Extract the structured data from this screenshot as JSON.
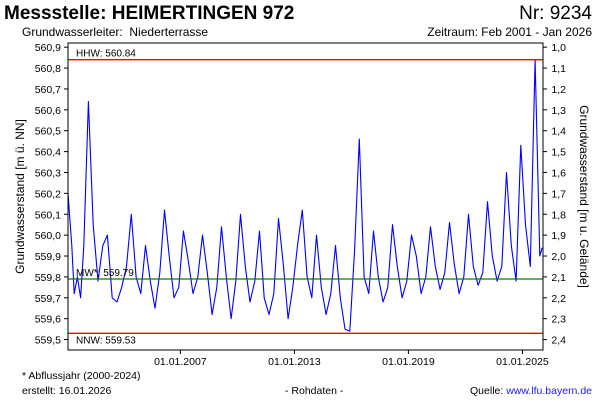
{
  "header": {
    "title": "Messstelle: HEIMERTINGEN 972",
    "number": "Nr: 9234",
    "aquifer_label": "Grundwasserleiter:",
    "aquifer_value": "Niederterrasse",
    "period": "Zeitraum: Feb 2001 - Jan 2026"
  },
  "footer": {
    "footnote": "* Abflussjahr (2000-2024)",
    "created": "erstellt:  16.01.2026",
    "rawdata": "- Rohdaten -",
    "source_label": "Quelle: ",
    "source_url": "www.lfu.bayern.de"
  },
  "colors": {
    "series": "#0000ff",
    "hhw": "#ff0000",
    "nnw": "#ff0000",
    "mw": "#008000",
    "axis": "#000000"
  },
  "chart_data": {
    "type": "line",
    "ylabel": "Grundwasserstand [m ü. NN]",
    "y2label": "Grundwasserstand [m u. Gelände]",
    "ylim": [
      559.45,
      560.92
    ],
    "yticks": [
      "560,9",
      "560,8",
      "560,7",
      "560,6",
      "560,5",
      "560,4",
      "560,3",
      "560,2",
      "560,1",
      "560,0",
      "559,9",
      "559,8",
      "559,7",
      "559,6",
      "559,5"
    ],
    "yticks_right": [
      "1,0",
      "1,1",
      "1,2",
      "1,3",
      "1,4",
      "1,5",
      "1,6",
      "1,7",
      "1,8",
      "1,9",
      "2,0",
      "2,1",
      "2,2",
      "2,3",
      "2,4"
    ],
    "xlim": [
      "2001-02-01",
      "2026-01-31"
    ],
    "xticks": [
      {
        "date": "2007-01-01",
        "label": "01.01.2007"
      },
      {
        "date": "2013-01-01",
        "label": "01.01.2013"
      },
      {
        "date": "2019-01-01",
        "label": "01.01.2019"
      },
      {
        "date": "2025-01-01",
        "label": "01.01.2025"
      }
    ],
    "reference_lines": [
      {
        "name": "HHW",
        "label": "HHW: 560.84",
        "value": 560.84
      },
      {
        "name": "MW",
        "label": "MW*: 559.79",
        "value": 559.79
      },
      {
        "name": "NNW",
        "label": "NNW: 559.53",
        "value": 559.53
      }
    ],
    "grid": false,
    "series": [
      {
        "x": [
          "2001-02-01",
          "2001-04-15",
          "2001-06-01",
          "2001-08-01",
          "2001-10-01",
          "2001-12-01",
          "2002-03-01",
          "2002-06-01",
          "2002-09-01",
          "2002-12-01",
          "2003-03-01",
          "2003-06-01",
          "2003-09-01",
          "2003-12-01",
          "2004-03-01",
          "2004-06-01",
          "2004-09-01",
          "2004-12-01",
          "2005-03-01",
          "2005-06-01",
          "2005-09-01",
          "2005-12-01",
          "2006-03-01",
          "2006-06-01",
          "2006-09-01",
          "2006-12-01",
          "2007-03-01",
          "2007-06-01",
          "2007-09-01",
          "2007-12-01",
          "2008-03-01",
          "2008-06-01",
          "2008-09-01",
          "2008-12-01",
          "2009-03-01",
          "2009-06-01",
          "2009-09-01",
          "2009-12-01",
          "2010-03-01",
          "2010-06-01",
          "2010-09-01",
          "2010-12-01",
          "2011-03-01",
          "2011-06-01",
          "2011-09-01",
          "2011-12-01",
          "2012-03-01",
          "2012-06-01",
          "2012-09-01",
          "2012-12-01",
          "2013-03-01",
          "2013-06-01",
          "2013-09-01",
          "2013-12-01",
          "2014-03-01",
          "2014-06-01",
          "2014-09-01",
          "2014-12-01",
          "2015-03-01",
          "2015-06-01",
          "2015-09-01",
          "2015-12-01",
          "2016-03-01",
          "2016-06-01",
          "2016-09-01",
          "2016-12-01",
          "2017-03-01",
          "2017-06-01",
          "2017-09-01",
          "2017-12-01",
          "2018-03-01",
          "2018-06-01",
          "2018-09-01",
          "2018-12-01",
          "2019-03-01",
          "2019-06-01",
          "2019-09-01",
          "2019-12-01",
          "2020-03-01",
          "2020-06-01",
          "2020-09-01",
          "2020-12-01",
          "2021-03-01",
          "2021-06-01",
          "2021-09-01",
          "2021-12-01",
          "2022-03-01",
          "2022-06-01",
          "2022-09-01",
          "2022-12-01",
          "2023-03-01",
          "2023-06-01",
          "2023-09-01",
          "2023-12-01",
          "2024-03-01",
          "2024-06-01",
          "2024-09-01",
          "2024-12-01",
          "2025-03-01",
          "2025-06-01",
          "2025-09-01",
          "2025-12-01",
          "2026-01-15"
        ],
        "values": [
          560.2,
          559.95,
          559.72,
          559.8,
          559.7,
          559.95,
          560.64,
          560.05,
          559.78,
          559.95,
          560.0,
          559.7,
          559.68,
          559.75,
          559.85,
          560.1,
          559.8,
          559.72,
          559.95,
          559.78,
          559.65,
          559.82,
          560.12,
          559.9,
          559.7,
          559.75,
          560.02,
          559.88,
          559.72,
          559.8,
          560.0,
          559.82,
          559.62,
          559.75,
          560.04,
          559.8,
          559.6,
          559.78,
          560.1,
          559.85,
          559.68,
          559.78,
          560.02,
          559.7,
          559.62,
          559.72,
          560.08,
          559.86,
          559.6,
          559.75,
          559.95,
          560.12,
          559.8,
          559.7,
          560.0,
          559.75,
          559.62,
          559.72,
          559.95,
          559.7,
          559.55,
          559.54,
          559.92,
          560.46,
          559.8,
          559.72,
          560.02,
          559.8,
          559.68,
          559.75,
          560.05,
          559.85,
          559.7,
          559.78,
          560.0,
          559.9,
          559.72,
          559.8,
          560.04,
          559.85,
          559.74,
          559.82,
          560.06,
          559.86,
          559.72,
          559.8,
          560.1,
          559.85,
          559.76,
          559.82,
          560.16,
          559.9,
          559.78,
          559.85,
          560.3,
          559.95,
          559.78,
          560.43,
          560.05,
          559.85,
          560.84,
          559.9,
          559.94
        ]
      }
    ]
  }
}
